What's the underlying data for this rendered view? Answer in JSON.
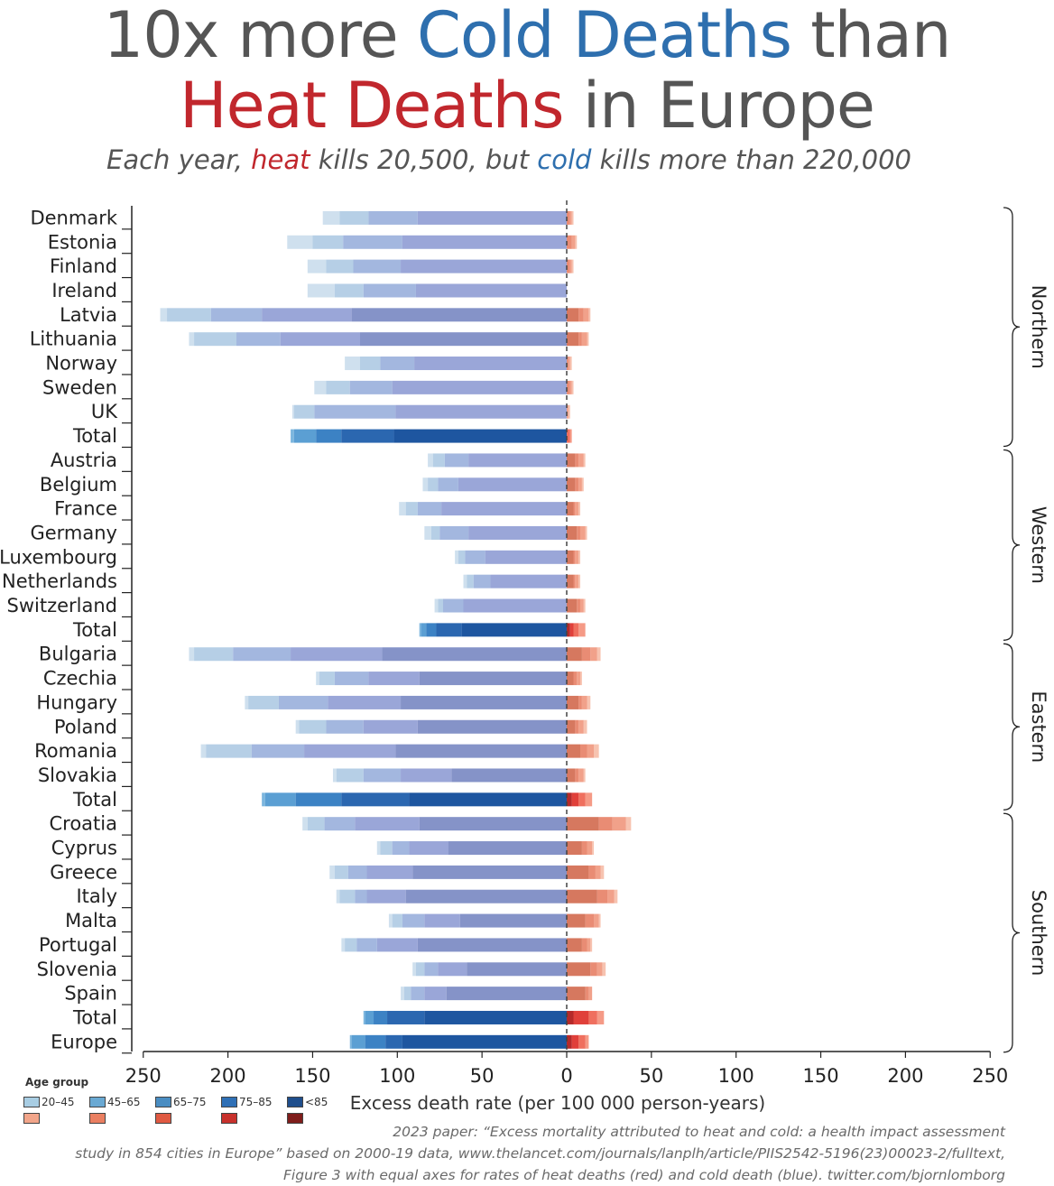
{
  "title": {
    "line1_prefix": "10x more ",
    "line1_cold": "Cold Deaths",
    "line1_suffix": " than",
    "line2_hot": "Heat Deaths",
    "line2_suffix": " in Europe"
  },
  "subtitle": {
    "prefix": "Each year, ",
    "hot": "heat",
    "middle": " kills 20,500, but ",
    "cold": "cold",
    "suffix": " kills more than 220,000"
  },
  "legend": {
    "title": "Age group",
    "groups": [
      "20–45",
      "45–65",
      "65–75",
      "75–85",
      "<85"
    ],
    "cold_colors": [
      "#a8cde3",
      "#6aa9d3",
      "#4a8dc2",
      "#2f70b6",
      "#1f4e8c"
    ],
    "hot_colors": [
      "#f2a58a",
      "#ea7f61",
      "#e05a42",
      "#c8312c",
      "#7f1d1b"
    ]
  },
  "footnote": {
    "line1": "2023 paper: “Excess mortality attributed to heat and cold: a health impact assessment",
    "line2": "study in 854 cities in Europe” based on 2000-19 data, www.thelancet.com/journals/lanplh/article/PIIS2542-5196(23)00023-2/fulltext,",
    "line3": "Figure 3 with equal axes for rates of heat deaths (red) and cold death (blue). twitter.com/bjornlomborg"
  },
  "chart_data": {
    "type": "bar",
    "orientation": "horizontal",
    "xlabel": "Excess death rate (per 100 000 person-years)",
    "xlim": [
      -250,
      250
    ],
    "xticks": [
      -250,
      -200,
      -150,
      -100,
      -50,
      0,
      50,
      100,
      150,
      200,
      250
    ],
    "xtick_labels": [
      "250",
      "200",
      "150",
      "100",
      "50",
      "0",
      "50",
      "100",
      "150",
      "200",
      "250"
    ],
    "regions": [
      {
        "name": "Northern",
        "rows": [
          "Denmark",
          "Estonia",
          "Finland",
          "Ireland",
          "Latvia",
          "Lithuania",
          "Norway",
          "Sweden",
          "UK",
          "Total"
        ]
      },
      {
        "name": "Western",
        "rows": [
          "Austria",
          "Belgium",
          "France",
          "Germany",
          "Luxembourg",
          "Netherlands",
          "Switzerland",
          "Total"
        ]
      },
      {
        "name": "Eastern",
        "rows": [
          "Bulgaria",
          "Czechia",
          "Hungary",
          "Poland",
          "Romania",
          "Slovakia",
          "Total"
        ]
      },
      {
        "name": "Southern",
        "rows": [
          "Croatia",
          "Cyprus",
          "Greece",
          "Italy",
          "Malta",
          "Portugal",
          "Slovenia",
          "Spain",
          "Total"
        ]
      }
    ],
    "categories": [
      "Denmark",
      "Estonia",
      "Finland",
      "Ireland",
      "Latvia",
      "Lithuania",
      "Norway",
      "Sweden",
      "UK",
      "Total",
      "Austria",
      "Belgium",
      "France",
      "Germany",
      "Luxembourg",
      "Netherlands",
      "Switzerland",
      "Total",
      "Bulgaria",
      "Czechia",
      "Hungary",
      "Poland",
      "Romania",
      "Slovakia",
      "Total",
      "Croatia",
      "Cyprus",
      "Greece",
      "Italy",
      "Malta",
      "Portugal",
      "Slovenia",
      "Spain",
      "Total",
      "Europe"
    ],
    "aggregate_rows": [
      9,
      17,
      24,
      33,
      34
    ],
    "series_note": "cold (negative) and heat (positive) cumulative excess death rate by age group: 20-45, 45-65, 65-75, 75-85, <85",
    "cold_cumulative": [
      [
        -144,
        -134,
        -117,
        -88,
        0
      ],
      [
        -165,
        -150,
        -132,
        -97,
        0
      ],
      [
        -153,
        -142,
        -126,
        -98,
        0
      ],
      [
        -153,
        -137,
        -120,
        -89,
        0
      ],
      [
        -240,
        -236,
        -210,
        -180,
        -127
      ],
      [
        -223,
        -220,
        -195,
        -169,
        -122
      ],
      [
        -131,
        -122,
        -110,
        -90,
        0
      ],
      [
        -149,
        -142,
        -128,
        -103,
        0
      ],
      [
        -162,
        -161,
        -149,
        -101,
        0
      ],
      [
        -163,
        -161,
        -148,
        -133,
        -102
      ],
      [
        -82,
        -79,
        -72,
        -58,
        0
      ],
      [
        -85,
        -82,
        -76,
        -64,
        0
      ],
      [
        -99,
        -95,
        -88,
        -74,
        0
      ],
      [
        -84,
        -80,
        -75,
        -58,
        0
      ],
      [
        -66,
        -64,
        -60,
        -48,
        0
      ],
      [
        -61,
        -59,
        -55,
        -45,
        0
      ],
      [
        -78,
        -76,
        -73,
        -61,
        0
      ],
      [
        -87,
        -86,
        -83,
        -77,
        -62
      ],
      [
        -223,
        -220,
        -197,
        -163,
        -109
      ],
      [
        -148,
        -146,
        -137,
        -117,
        -87
      ],
      [
        -190,
        -188,
        -170,
        -141,
        -98
      ],
      [
        -160,
        -158,
        -142,
        -120,
        -88
      ],
      [
        -216,
        -213,
        -186,
        -155,
        -101
      ],
      [
        -138,
        -136,
        -120,
        -98,
        -68
      ],
      [
        -180,
        -178,
        -160,
        -133,
        -93
      ],
      [
        -156,
        -153,
        -143,
        -125,
        -87
      ],
      [
        -112,
        -110,
        -103,
        -93,
        -70
      ],
      [
        -140,
        -137,
        -129,
        -118,
        -91
      ],
      [
        -136,
        -134,
        -125,
        -118,
        -95
      ],
      [
        -105,
        -103,
        -97,
        -84,
        -63
      ],
      [
        -133,
        -131,
        -124,
        -112,
        -88
      ],
      [
        -91,
        -89,
        -84,
        -76,
        -59
      ],
      [
        -98,
        -96,
        -92,
        -84,
        -71
      ],
      [
        -120,
        -119,
        -114,
        -106,
        -84
      ],
      [
        -128,
        -127,
        -119,
        -107,
        -97
      ]
    ],
    "heat_cumulative": [
      [
        0,
        0,
        2,
        3,
        4
      ],
      [
        0,
        0,
        3,
        5,
        6
      ],
      [
        0,
        0,
        2,
        3,
        4
      ],
      [
        0,
        0,
        0,
        0,
        0
      ],
      [
        0,
        7,
        10,
        13,
        14
      ],
      [
        0,
        7,
        9,
        12,
        13
      ],
      [
        0,
        0,
        1,
        2,
        3
      ],
      [
        0,
        0,
        2,
        3,
        4
      ],
      [
        0,
        0,
        0,
        1,
        2
      ],
      [
        0,
        0,
        0,
        2,
        3
      ],
      [
        0,
        5,
        7,
        10,
        11
      ],
      [
        0,
        5,
        7,
        9,
        10
      ],
      [
        0,
        4,
        5,
        7,
        8
      ],
      [
        0,
        6,
        8,
        11,
        12
      ],
      [
        0,
        4,
        5,
        7,
        8
      ],
      [
        0,
        4,
        5,
        7,
        8
      ],
      [
        0,
        6,
        8,
        10,
        11
      ],
      [
        0,
        2,
        4,
        7,
        11
      ],
      [
        0,
        9,
        14,
        18,
        20
      ],
      [
        0,
        4,
        6,
        8,
        9
      ],
      [
        0,
        7,
        9,
        12,
        14
      ],
      [
        0,
        5,
        7,
        10,
        12
      ],
      [
        0,
        8,
        12,
        16,
        19
      ],
      [
        0,
        5,
        7,
        10,
        11
      ],
      [
        0,
        3,
        7,
        11,
        15
      ],
      [
        0,
        19,
        27,
        35,
        38
      ],
      [
        0,
        9,
        12,
        15,
        16
      ],
      [
        0,
        13,
        17,
        20,
        22
      ],
      [
        0,
        18,
        24,
        28,
        30
      ],
      [
        0,
        11,
        16,
        19,
        20
      ],
      [
        0,
        9,
        12,
        14,
        15
      ],
      [
        0,
        14,
        18,
        21,
        23
      ],
      [
        0,
        11,
        13,
        15,
        15
      ],
      [
        0,
        4,
        13,
        18,
        22
      ],
      [
        0,
        3,
        7,
        11,
        13
      ]
    ]
  }
}
